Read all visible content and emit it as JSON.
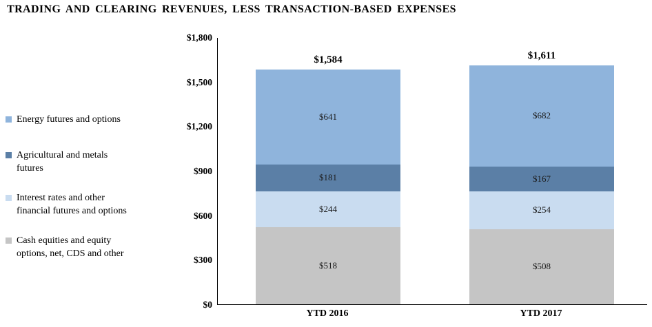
{
  "chart_data": {
    "type": "bar",
    "stacked": true,
    "title": "TRADING AND CLEARING REVENUES, LESS TRANSACTION-BASED EXPENSES",
    "categories": [
      "YTD 2016",
      "YTD 2017"
    ],
    "totals": [
      1584,
      1611
    ],
    "total_labels": [
      "$1,584",
      "$1,611"
    ],
    "series": [
      {
        "name": "Cash equities and equity options, net, CDS and other",
        "color": "#C5C5C5",
        "values": [
          518,
          508
        ],
        "value_labels": [
          "$518",
          "$508"
        ]
      },
      {
        "name": "Interest rates and other financial futures and options",
        "color": "#C9DCF0",
        "values": [
          244,
          254
        ],
        "value_labels": [
          "$244",
          "$254"
        ]
      },
      {
        "name": "Agricultural and metals futures",
        "color": "#5B7FA6",
        "values": [
          181,
          167
        ],
        "value_labels": [
          "$181",
          "$167"
        ]
      },
      {
        "name": "Energy futures and options",
        "color": "#8FB4DC",
        "values": [
          641,
          682
        ],
        "value_labels": [
          "$641",
          "$682"
        ]
      }
    ],
    "stack_order": "bottom-to-top",
    "legend": [
      {
        "text": "Energy futures and options",
        "color": "#8FB4DC"
      },
      {
        "text": "Agricultural and metals\nfutures",
        "color": "#5B7FA6"
      },
      {
        "text": "Interest rates and other\nfinancial futures and options",
        "color": "#C9DCF0"
      },
      {
        "text": "Cash equities and equity\noptions, net, CDS and other",
        "color": "#C5C5C5"
      }
    ],
    "y_tick_labels": [
      "$1,800",
      "$1,500",
      "$1,200",
      "$900",
      "$600",
      "$300",
      "$0"
    ],
    "y_tick_values": [
      1800,
      1500,
      1200,
      900,
      600,
      300,
      0
    ],
    "ylim": [
      0,
      1800
    ],
    "legend_position": "left",
    "grid": false,
    "xlabel": "",
    "ylabel": ""
  }
}
